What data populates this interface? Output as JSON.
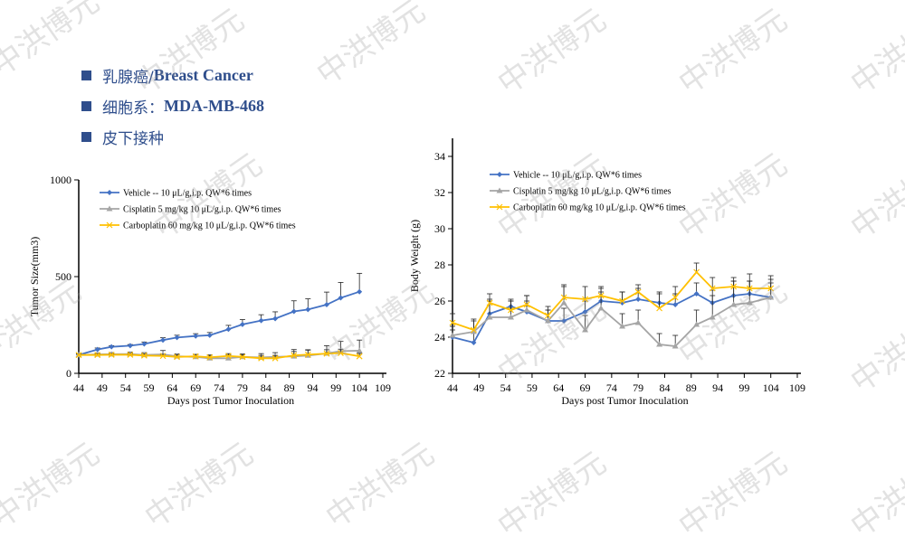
{
  "bullets": [
    {
      "zh": "乳腺癌/",
      "en": "Breast Cancer"
    },
    {
      "zh": "细胞系：",
      "en": "MDA-MB-468"
    },
    {
      "zh": "皮下接种",
      "en": ""
    }
  ],
  "watermark": "中洪博元",
  "colors": {
    "vehicle": "#4472c4",
    "cisplatin": "#a5a5a5",
    "carboplatin": "#ffc000",
    "bullet": "#2f4e8c"
  },
  "chart_data": [
    {
      "type": "line",
      "xlabel": "Days post Tumor Inoculation",
      "ylabel": "Tumor Size(mm3)",
      "xlim": [
        44,
        109
      ],
      "ylim": [
        0,
        1000
      ],
      "xticks": [
        44,
        49,
        54,
        59,
        64,
        69,
        74,
        79,
        84,
        89,
        94,
        99,
        104,
        109
      ],
      "yticks": [
        0,
        500,
        1000
      ],
      "legend": "top-left",
      "x": [
        44,
        48,
        51,
        55,
        58,
        62,
        65,
        69,
        72,
        76,
        79,
        83,
        86,
        90,
        93,
        97,
        100,
        104
      ],
      "series": [
        {
          "name": "Vehicle -- 10 μL/g,i.p. QW*6 times",
          "marker": "diamond",
          "values": [
            95,
            123,
            137,
            143,
            152,
            172,
            185,
            193,
            197,
            228,
            253,
            273,
            283,
            320,
            330,
            355,
            390,
            422
          ],
          "error": [
            5,
            8,
            6,
            6,
            10,
            12,
            12,
            12,
            14,
            20,
            25,
            30,
            35,
            55,
            55,
            65,
            80,
            95
          ]
        },
        {
          "name": "Cisplatin 5 mg/kg 10 μL/g,i.p. QW*6 times",
          "marker": "triangle",
          "values": [
            95,
            98,
            99,
            100,
            95,
            98,
            88,
            85,
            78,
            78,
            85,
            82,
            85,
            88,
            92,
            103,
            115,
            117
          ],
          "error": [
            5,
            8,
            8,
            10,
            12,
            20,
            12,
            12,
            15,
            18,
            15,
            20,
            22,
            25,
            28,
            40,
            50,
            55
          ]
        },
        {
          "name": "Carboplatin 60 mg/kg 10 μL/g,i.p. QW*6 times",
          "marker": "x",
          "values": [
            95,
            95,
            96,
            96,
            92,
            90,
            85,
            88,
            83,
            90,
            85,
            78,
            78,
            93,
            97,
            102,
            105,
            88
          ],
          "error": [
            5,
            6,
            6,
            6,
            8,
            8,
            10,
            10,
            12,
            12,
            12,
            15,
            15,
            30,
            25,
            20,
            20,
            15
          ]
        }
      ]
    },
    {
      "type": "line",
      "xlabel": "Days post Tumor Inoculation",
      "ylabel": "Body Weight (g)",
      "xlim": [
        44,
        109
      ],
      "ylim": [
        22,
        35
      ],
      "xticks": [
        44,
        49,
        54,
        59,
        64,
        69,
        74,
        79,
        84,
        89,
        94,
        99,
        104,
        109
      ],
      "yticks": [
        22,
        24,
        26,
        28,
        30,
        32,
        34
      ],
      "legend": "top-left",
      "x": [
        44,
        48,
        51,
        55,
        58,
        62,
        65,
        69,
        72,
        76,
        79,
        83,
        86,
        90,
        93,
        97,
        100,
        104
      ],
      "series": [
        {
          "name": "Vehicle -- 10 μL/g,i.p. QW*6 times",
          "marker": "diamond",
          "values": [
            24.0,
            23.7,
            25.3,
            25.7,
            25.4,
            24.9,
            24.9,
            25.4,
            26.0,
            25.9,
            26.1,
            25.9,
            25.8,
            26.4,
            25.9,
            26.3,
            26.4,
            26.2
          ],
          "error": [
            0.6,
            0.6,
            0.7,
            0.4,
            0.6,
            0.6,
            0.7,
            0.6,
            0.5,
            0.6,
            0.6,
            0.5,
            0.6,
            0.6,
            0.7,
            0.8,
            0.7,
            0.8
          ]
        },
        {
          "name": "Cisplatin 5 mg/kg 10 μL/g,i.p. QW*6 times",
          "marker": "triangle",
          "values": [
            24.1,
            24.3,
            25.1,
            25.1,
            25.5,
            24.9,
            25.9,
            24.4,
            25.6,
            24.6,
            24.8,
            23.6,
            23.5,
            24.7,
            25.1,
            25.8,
            25.9,
            26.2
          ],
          "error": [
            0.3,
            0.6,
            1.0,
            0.9,
            0.8,
            0.6,
            1.0,
            0.8,
            1.1,
            0.7,
            0.7,
            0.6,
            0.6,
            0.8,
            1.2,
            1.3,
            1.2,
            1.0
          ]
        },
        {
          "name": "Carboplatin 60 mg/kg 10 μL/g,i.p. QW*6 times",
          "marker": "x",
          "values": [
            24.8,
            24.4,
            25.9,
            25.5,
            25.8,
            25.2,
            26.2,
            26.1,
            26.3,
            26.0,
            26.5,
            25.6,
            26.2,
            27.6,
            26.7,
            26.8,
            26.7,
            26.7
          ],
          "error": [
            0.5,
            0.6,
            0.5,
            0.5,
            0.5,
            0.5,
            0.6,
            0.7,
            0.5,
            0.5,
            0.4,
            0.9,
            0.6,
            0.5,
            0.6,
            0.5,
            0.8,
            0.7
          ]
        }
      ]
    }
  ]
}
